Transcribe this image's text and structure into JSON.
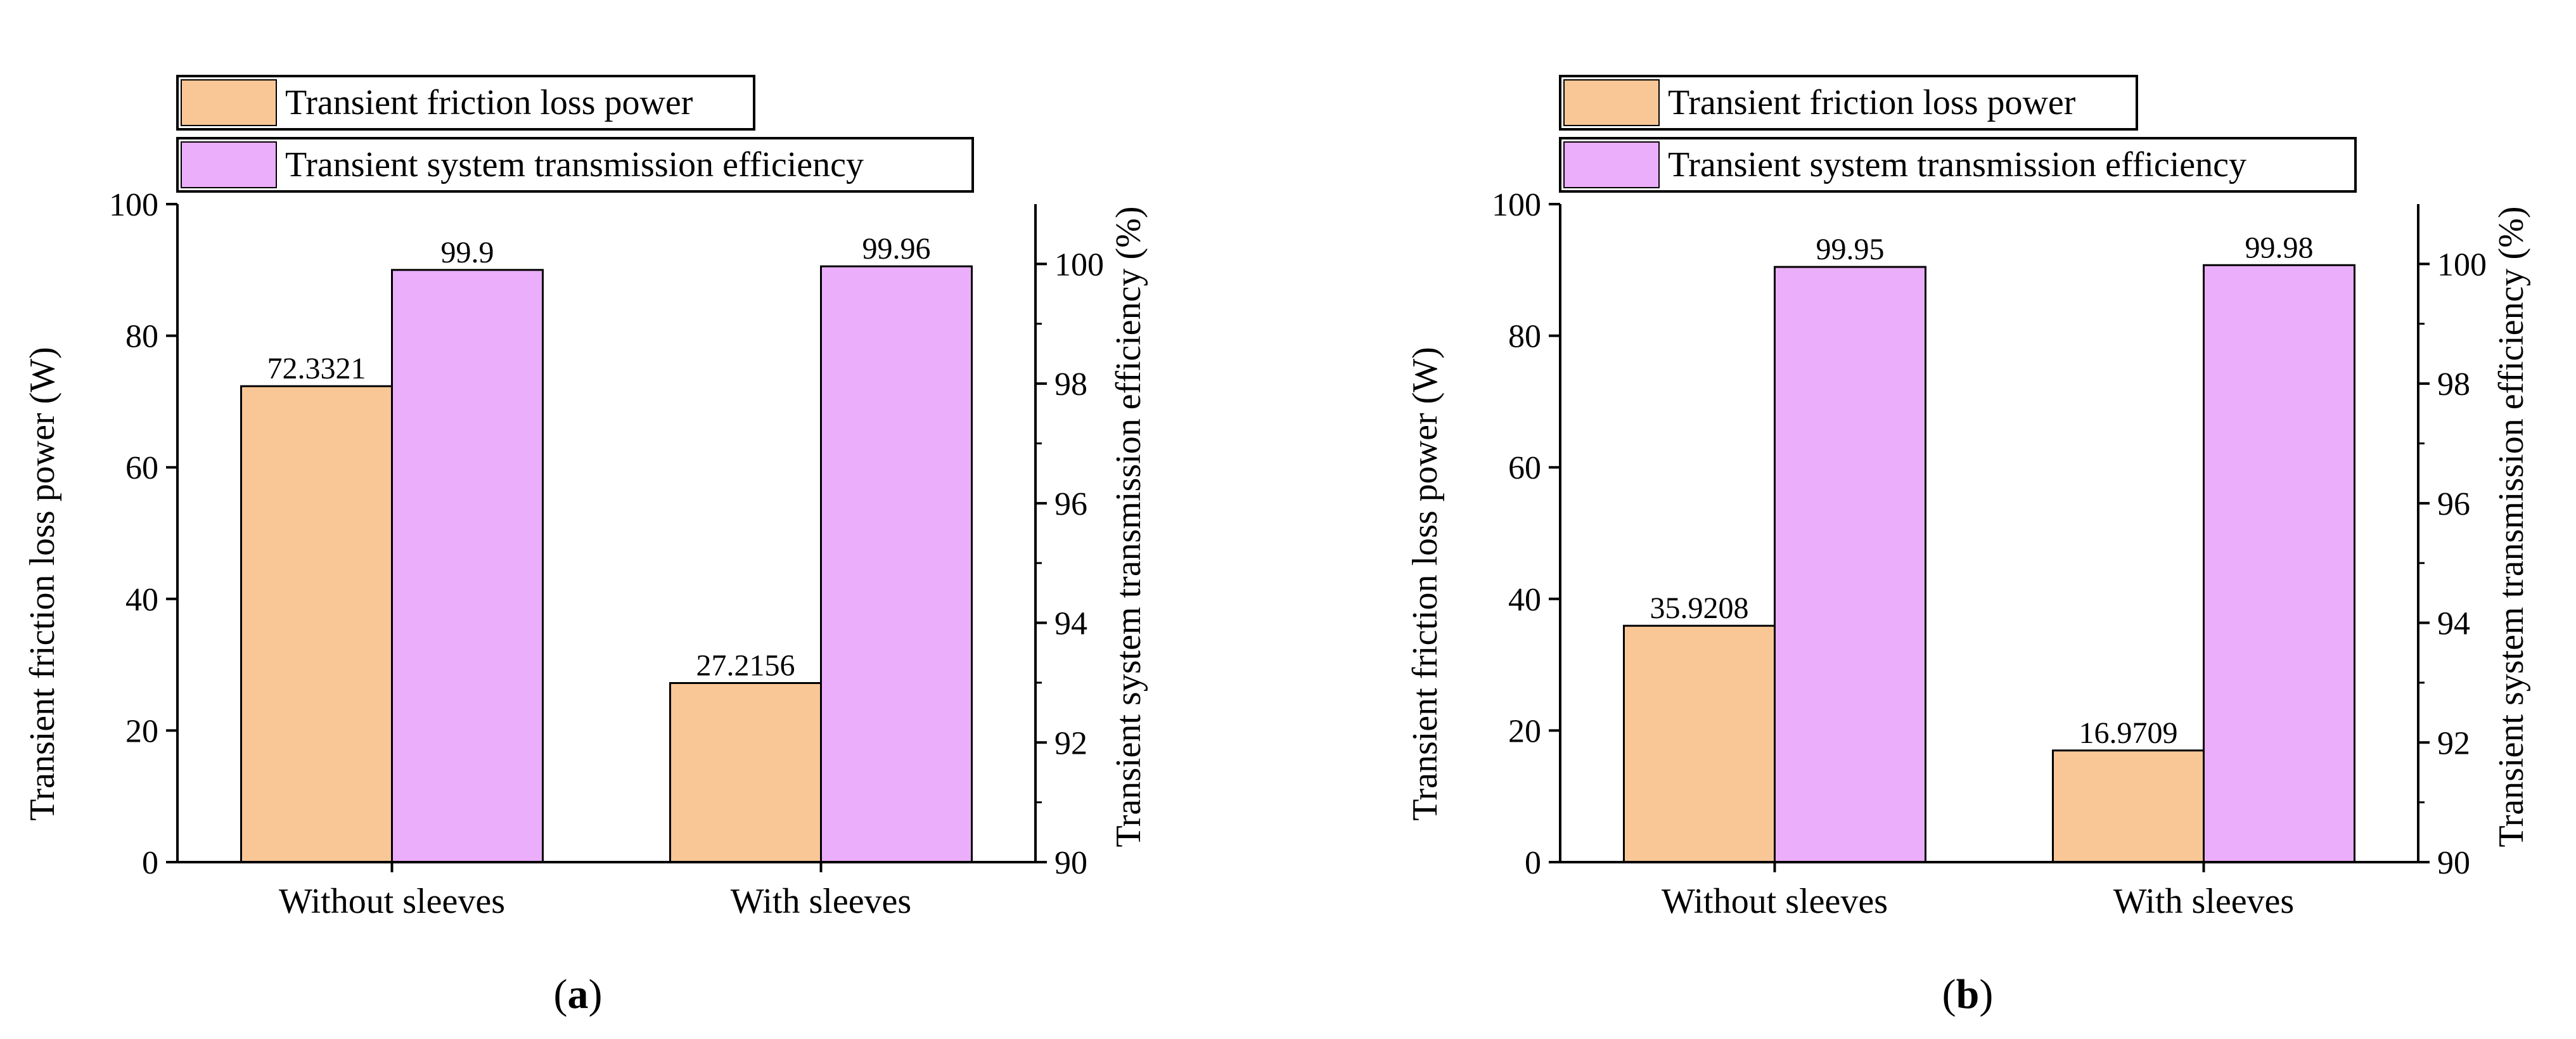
{
  "colors": {
    "friction": "#F9C796",
    "efficiency": "#EBAEFB",
    "axis": "#000000"
  },
  "chart_data": [
    {
      "type": "bar",
      "panel_label": "a",
      "categories": [
        "Without sleeves",
        "With sleeves"
      ],
      "series": [
        {
          "name": "Transient friction loss power",
          "axis": "left",
          "values": [
            72.3321,
            27.2156
          ],
          "labels": [
            "72.3321",
            "27.2156"
          ]
        },
        {
          "name": "Transient system transmission efficiency",
          "axis": "right",
          "values": [
            99.9,
            99.96
          ],
          "labels": [
            "99.9",
            "99.96"
          ]
        }
      ],
      "ylabel_left": "Transient friction loss power (W)",
      "ylabel_right": "Transient system transmission efficiency (%)",
      "ylim_left": [
        0,
        100
      ],
      "ylim_right": [
        90,
        101
      ],
      "yticks_left": [
        "0",
        "20",
        "40",
        "60",
        "80",
        "100"
      ],
      "yticks_right": [
        "90",
        "92",
        "94",
        "96",
        "98",
        "100"
      ],
      "legend_position": "top-left"
    },
    {
      "type": "bar",
      "panel_label": "b",
      "categories": [
        "Without sleeves",
        "With sleeves"
      ],
      "series": [
        {
          "name": "Transient friction loss power",
          "axis": "left",
          "values": [
            35.9208,
            16.9709
          ],
          "labels": [
            "35.9208",
            "16.9709"
          ]
        },
        {
          "name": "Transient system transmission efficiency",
          "axis": "right",
          "values": [
            99.95,
            99.98
          ],
          "labels": [
            "99.95",
            "99.98"
          ]
        }
      ],
      "ylabel_left": "Transient friction loss power (W)",
      "ylabel_right": "Transient system transmission efficiency (%)",
      "ylim_left": [
        0,
        100
      ],
      "ylim_right": [
        90,
        101
      ],
      "yticks_left": [
        "0",
        "20",
        "40",
        "60",
        "80",
        "100"
      ],
      "yticks_right": [
        "90",
        "92",
        "94",
        "96",
        "98",
        "100"
      ],
      "legend_position": "top-left"
    }
  ]
}
